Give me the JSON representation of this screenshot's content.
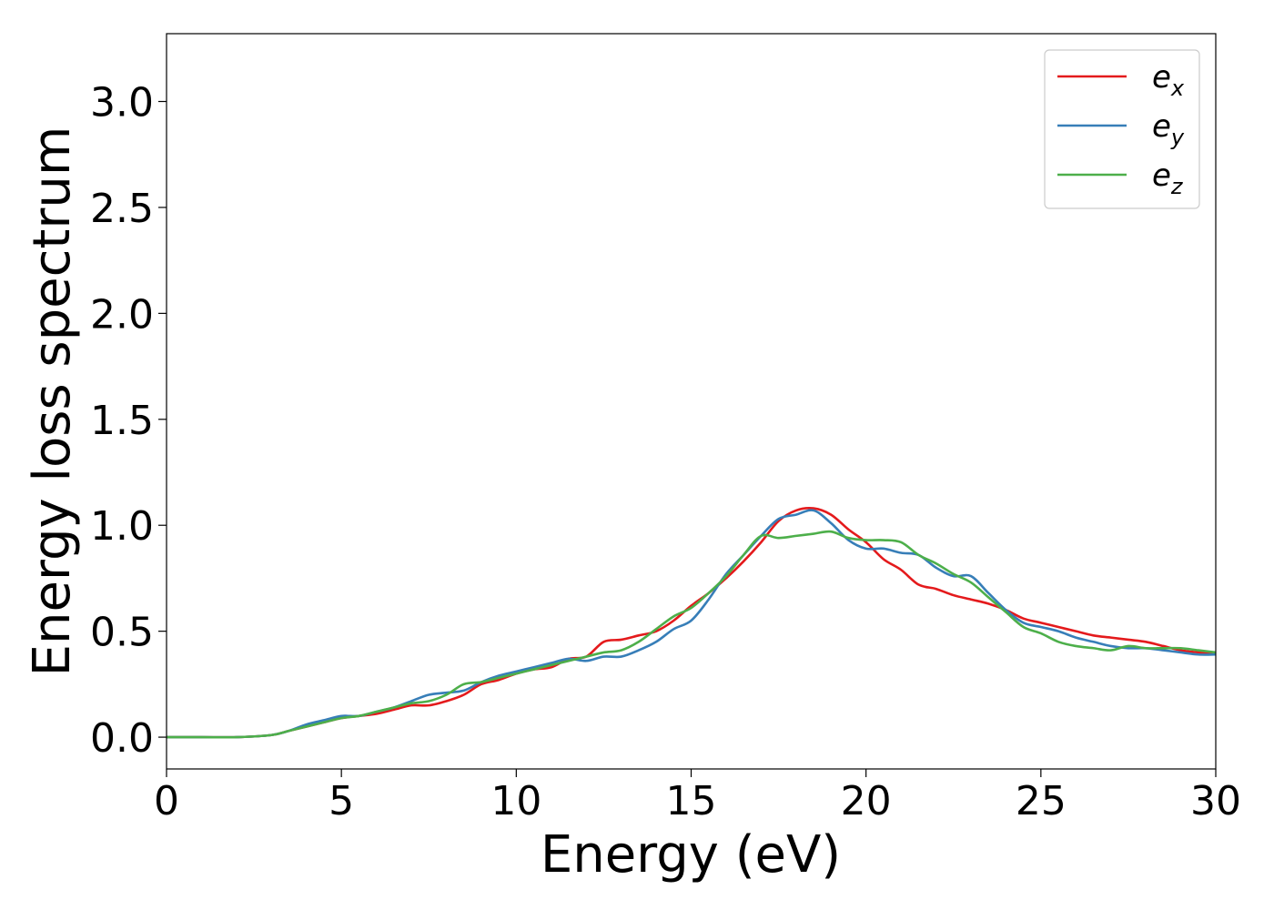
{
  "chart_data": {
    "type": "line",
    "xlabel": "Energy (eV)",
    "ylabel": "Energy loss spectrum",
    "xlim": [
      0,
      30
    ],
    "ylim": [
      -0.15,
      3.32
    ],
    "xticks": [
      "0",
      "5",
      "10",
      "15",
      "20",
      "25",
      "30"
    ],
    "yticks": [
      "0.0",
      "0.5",
      "1.0",
      "1.5",
      "2.0",
      "2.5",
      "3.0"
    ],
    "grid": false,
    "legend_position": "top-right",
    "series": [
      {
        "name": "e",
        "subscript": "x",
        "color": "#e41a1c",
        "x": [
          0,
          1,
          2,
          3,
          3.5,
          4,
          4.5,
          5,
          5.5,
          6,
          6.5,
          7,
          7.5,
          8,
          8.5,
          9,
          9.5,
          10,
          10.5,
          11,
          11.5,
          12,
          12.5,
          13,
          13.5,
          14,
          14.5,
          15,
          15.5,
          16,
          16.5,
          17,
          17.5,
          18,
          18.5,
          19,
          19.5,
          20,
          20.5,
          21,
          21.5,
          22,
          22.5,
          23,
          23.5,
          24,
          24.5,
          25,
          25.5,
          26,
          26.5,
          27,
          27.5,
          28,
          28.5,
          29,
          29.5,
          30
        ],
        "values": [
          0,
          0,
          0,
          0.01,
          0.03,
          0.05,
          0.07,
          0.09,
          0.1,
          0.11,
          0.13,
          0.15,
          0.15,
          0.17,
          0.2,
          0.25,
          0.27,
          0.3,
          0.32,
          0.33,
          0.37,
          0.38,
          0.45,
          0.46,
          0.48,
          0.5,
          0.55,
          0.62,
          0.68,
          0.75,
          0.83,
          0.92,
          1.02,
          1.07,
          1.08,
          1.05,
          0.98,
          0.92,
          0.84,
          0.79,
          0.72,
          0.7,
          0.67,
          0.65,
          0.63,
          0.6,
          0.56,
          0.54,
          0.52,
          0.5,
          0.48,
          0.47,
          0.46,
          0.45,
          0.43,
          0.41,
          0.4,
          0.39
        ]
      },
      {
        "name": "e",
        "subscript": "y",
        "color": "#377eb8",
        "x": [
          0,
          1,
          2,
          3,
          3.5,
          4,
          4.5,
          5,
          5.5,
          6,
          6.5,
          7,
          7.5,
          8,
          8.5,
          9,
          9.5,
          10,
          10.5,
          11,
          11.5,
          12,
          12.5,
          13,
          13.5,
          14,
          14.5,
          15,
          15.5,
          16,
          16.5,
          17,
          17.5,
          18,
          18.5,
          19,
          19.5,
          20,
          20.5,
          21,
          21.5,
          22,
          22.5,
          23,
          23.5,
          24,
          24.5,
          25,
          25.5,
          26,
          26.5,
          27,
          27.5,
          28,
          28.5,
          29,
          29.5,
          30
        ],
        "values": [
          0,
          0,
          0,
          0.01,
          0.03,
          0.06,
          0.08,
          0.1,
          0.1,
          0.12,
          0.14,
          0.17,
          0.2,
          0.21,
          0.22,
          0.26,
          0.29,
          0.31,
          0.33,
          0.35,
          0.37,
          0.36,
          0.38,
          0.38,
          0.41,
          0.45,
          0.51,
          0.55,
          0.65,
          0.77,
          0.86,
          0.95,
          1.03,
          1.05,
          1.07,
          1.01,
          0.93,
          0.89,
          0.89,
          0.87,
          0.86,
          0.8,
          0.76,
          0.76,
          0.68,
          0.6,
          0.54,
          0.52,
          0.5,
          0.47,
          0.45,
          0.43,
          0.42,
          0.42,
          0.41,
          0.4,
          0.39,
          0.39
        ]
      },
      {
        "name": "e",
        "subscript": "z",
        "color": "#4daf4a",
        "x": [
          0,
          1,
          2,
          3,
          3.5,
          4,
          4.5,
          5,
          5.5,
          6,
          6.5,
          7,
          7.5,
          8,
          8.5,
          9,
          9.5,
          10,
          10.5,
          11,
          11.5,
          12,
          12.5,
          13,
          13.5,
          14,
          14.5,
          15,
          15.5,
          16,
          16.5,
          17,
          17.5,
          18,
          18.5,
          19,
          19.5,
          20,
          20.5,
          21,
          21.5,
          22,
          22.5,
          23,
          23.5,
          24,
          24.5,
          25,
          25.5,
          26,
          26.5,
          27,
          27.5,
          28,
          28.5,
          29,
          29.5,
          30
        ],
        "values": [
          0,
          0,
          0,
          0.01,
          0.03,
          0.05,
          0.07,
          0.09,
          0.1,
          0.12,
          0.14,
          0.16,
          0.17,
          0.2,
          0.25,
          0.26,
          0.28,
          0.3,
          0.32,
          0.34,
          0.36,
          0.38,
          0.4,
          0.41,
          0.45,
          0.51,
          0.57,
          0.61,
          0.68,
          0.76,
          0.86,
          0.95,
          0.94,
          0.95,
          0.96,
          0.97,
          0.94,
          0.93,
          0.93,
          0.92,
          0.86,
          0.82,
          0.77,
          0.73,
          0.66,
          0.59,
          0.52,
          0.49,
          0.45,
          0.43,
          0.42,
          0.41,
          0.43,
          0.42,
          0.42,
          0.42,
          0.41,
          0.4
        ]
      }
    ]
  }
}
